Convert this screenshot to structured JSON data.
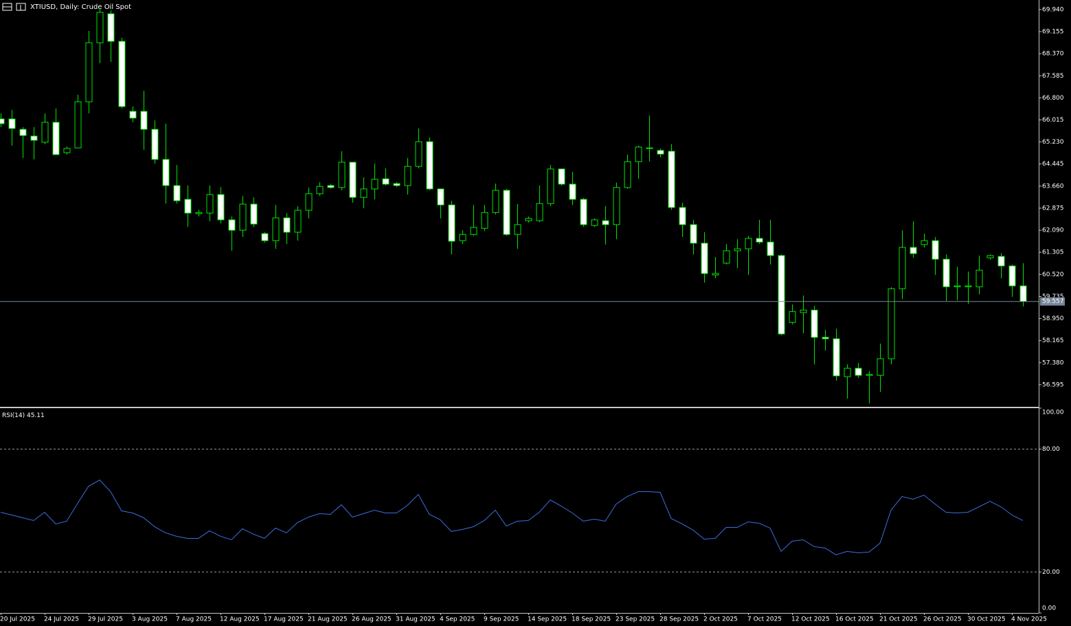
{
  "chart_data": [
    {
      "type": "candlestick",
      "title": "XTIUSD, Daily:  Crude Oil Spot",
      "categories": [
        "20 Jul 2025",
        null,
        null,
        null,
        "24 Jul 2025",
        null,
        null,
        null,
        "29 Jul 2025",
        null,
        null,
        null,
        "3 Aug 2025",
        null,
        null,
        null,
        "7 Aug 2025",
        null,
        null,
        null,
        "12 Aug 2025",
        null,
        null,
        null,
        "17 Aug 2025",
        null,
        null,
        null,
        "21 Aug 2025",
        null,
        null,
        null,
        "26 Aug 2025",
        null,
        null,
        null,
        "31 Aug 2025",
        null,
        null,
        null,
        "4 Sep 2025",
        null,
        null,
        null,
        "9 Sep 2025",
        null,
        null,
        null,
        "14 Sep 2025",
        null,
        null,
        null,
        "18 Sep 2025",
        null,
        null,
        null,
        "23 Sep 2025",
        null,
        null,
        null,
        "28 Sep 2025",
        null,
        null,
        null,
        "2 Oct 2025",
        null,
        null,
        null,
        "7 Oct 2025",
        null,
        null,
        null,
        "12 Oct 2025",
        null,
        null,
        null,
        "16 Oct 2025",
        null,
        null,
        null,
        "21 Oct 2025",
        null,
        null,
        null,
        "26 Oct 2025",
        null,
        null,
        null,
        "30 Oct 2025",
        null,
        null,
        null,
        "4 Nov 2025",
        null
      ],
      "open": [
        66.05,
        66.05,
        65.68,
        65.44,
        65.22,
        65.93,
        64.85,
        65.02,
        66.66,
        68.76,
        69.79,
        68.81,
        66.32,
        66.32,
        65.68,
        64.61,
        63.68,
        63.19,
        62.68,
        62.7,
        63.36,
        62.46,
        62.09,
        63.02,
        61.97,
        61.72,
        62.53,
        62.02,
        62.8,
        63.39,
        63.68,
        63.61,
        64.51,
        63.26,
        63.56,
        63.92,
        63.75,
        63.68,
        64.36,
        65.24,
        63.56,
        62.99,
        61.72,
        61.94,
        62.16,
        62.72,
        63.51,
        61.94,
        62.43,
        62.43,
        63.04,
        64.27,
        63.73,
        63.19,
        62.26,
        62.43,
        62.29,
        63.61,
        64.53,
        65.0,
        64.93,
        64.9,
        62.9,
        62.29,
        61.63,
        60.5,
        60.92,
        61.36,
        61.43,
        61.8,
        61.67,
        61.19,
        58.81,
        59.16,
        59.25,
        58.28,
        58.23,
        56.88,
        57.18,
        56.93,
        56.93,
        57.52,
        60.01,
        61.48,
        61.58,
        61.72,
        61.06,
        60.08,
        60.08,
        60.08,
        61.11,
        61.16,
        60.82,
        60.11
      ],
      "high": [
        66.25,
        66.37,
        65.76,
        65.76,
        66.25,
        66.42,
        65.07,
        66.91,
        69.18,
        69.99,
        69.91,
        68.94,
        66.49,
        67.05,
        66.0,
        65.88,
        64.41,
        63.68,
        62.82,
        63.68,
        63.63,
        62.58,
        63.31,
        63.26,
        62.02,
        62.99,
        62.7,
        62.95,
        63.61,
        63.8,
        63.73,
        64.9,
        64.51,
        63.97,
        64.46,
        64.29,
        63.8,
        64.66,
        65.71,
        65.39,
        63.56,
        63.14,
        62.09,
        62.99,
        62.99,
        63.75,
        63.56,
        63.02,
        62.58,
        63.68,
        64.41,
        64.29,
        64.17,
        63.24,
        62.51,
        62.95,
        63.78,
        64.78,
        65.1,
        66.17,
        65.0,
        65.15,
        63.07,
        62.46,
        62.02,
        61.14,
        61.6,
        61.77,
        61.89,
        62.46,
        62.46,
        61.23,
        59.45,
        59.77,
        59.4,
        58.54,
        58.59,
        57.32,
        57.37,
        57.08,
        58.06,
        60.06,
        62.09,
        62.41,
        61.97,
        61.85,
        61.23,
        60.79,
        60.62,
        61.19,
        61.23,
        61.28,
        60.87,
        60.92
      ],
      "low": [
        65.76,
        65.1,
        64.66,
        64.61,
        65.15,
        64.78,
        64.78,
        65.02,
        66.25,
        68.03,
        68.08,
        66.42,
        65.93,
        64.95,
        64.46,
        63.04,
        63.04,
        62.21,
        62.58,
        62.41,
        62.33,
        61.36,
        61.85,
        62.21,
        61.65,
        61.43,
        61.6,
        61.72,
        62.51,
        63.31,
        63.56,
        63.51,
        63.07,
        62.87,
        63.19,
        63.68,
        63.63,
        63.36,
        64.29,
        63.51,
        62.51,
        61.23,
        61.6,
        61.89,
        62.06,
        62.65,
        61.89,
        61.43,
        62.36,
        62.38,
        62.95,
        63.68,
        62.99,
        62.21,
        62.21,
        61.58,
        61.77,
        63.56,
        63.92,
        64.53,
        64.68,
        62.82,
        61.85,
        61.23,
        60.23,
        60.38,
        60.87,
        60.74,
        60.5,
        61.6,
        60.87,
        58.35,
        58.74,
        58.42,
        57.32,
        57.81,
        56.74,
        56.1,
        56.83,
        55.93,
        56.34,
        57.32,
        59.64,
        61.11,
        61.48,
        60.5,
        59.57,
        59.6,
        59.47,
        59.81,
        61.04,
        60.38,
        59.72,
        59.38
      ],
      "close": [
        65.88,
        65.71,
        65.46,
        65.29,
        65.93,
        64.78,
        65.0,
        66.66,
        68.76,
        69.84,
        68.81,
        66.49,
        66.08,
        65.68,
        64.61,
        63.68,
        63.14,
        62.7,
        62.72,
        63.36,
        62.46,
        62.09,
        63.02,
        62.31,
        61.72,
        62.53,
        62.02,
        62.8,
        63.39,
        63.65,
        63.61,
        64.51,
        63.26,
        63.56,
        63.9,
        63.73,
        63.68,
        64.36,
        65.24,
        63.56,
        62.99,
        61.7,
        61.94,
        62.19,
        62.72,
        63.51,
        61.94,
        62.29,
        62.51,
        63.04,
        64.27,
        63.73,
        63.19,
        62.29,
        62.46,
        62.29,
        63.61,
        64.53,
        65.05,
        65.02,
        64.8,
        62.9,
        62.29,
        61.63,
        60.55,
        60.55,
        61.36,
        61.43,
        61.8,
        61.67,
        61.19,
        58.4,
        59.2,
        59.25,
        58.28,
        58.23,
        56.91,
        57.18,
        56.93,
        56.96,
        57.52,
        60.01,
        61.48,
        61.26,
        61.72,
        61.06,
        60.08,
        60.11,
        60.11,
        60.67,
        61.19,
        60.82,
        60.11,
        59.557
      ],
      "current_price": 59.557,
      "ylim": [
        55.81,
        70.28
      ],
      "yticks": [
        {
          "value": 69.94,
          "label": "69.940"
        },
        69.155,
        {
          "value": 68.37,
          "label": "68.370"
        },
        67.585,
        {
          "value": 66.8,
          "label": "66.800"
        },
        66.015,
        {
          "value": 65.23,
          "label": "65.230"
        },
        64.445,
        {
          "value": 63.66,
          "label": "63.660"
        },
        62.875,
        {
          "value": 62.09,
          "label": "62.090"
        },
        61.305,
        {
          "value": 60.52,
          "label": "60.520"
        },
        59.735,
        {
          "value": 58.95,
          "label": "58.950"
        },
        58.165,
        {
          "value": 57.38,
          "label": "57.380"
        },
        56.595
      ],
      "grid": false,
      "colors": {
        "wick": "#00e600",
        "up_body": "#000000",
        "down_body": "#ffffff",
        "current_line": "#778899"
      }
    },
    {
      "type": "line",
      "title": "RSI(14)",
      "last_value": 45.11,
      "color": "#3d6fe0",
      "values": [
        49.16,
        47.82,
        46.48,
        45.14,
        49.16,
        43.46,
        44.8,
        53.52,
        61.9,
        64.92,
        59.22,
        49.83,
        48.83,
        46.48,
        42.12,
        39.11,
        37.43,
        36.42,
        36.42,
        40.11,
        37.43,
        35.75,
        41.12,
        38.44,
        36.42,
        41.45,
        39.11,
        44.13,
        46.82,
        48.49,
        48.16,
        52.85,
        46.82,
        48.49,
        50.17,
        48.83,
        48.83,
        52.51,
        57.88,
        48.16,
        45.47,
        39.78,
        40.78,
        42.12,
        45.14,
        50.17,
        42.46,
        44.8,
        45.14,
        49.16,
        55.2,
        52.18,
        48.83,
        44.8,
        45.81,
        44.8,
        53.18,
        56.87,
        59.22,
        59.22,
        58.88,
        46.14,
        43.46,
        40.45,
        36.09,
        36.42,
        41.79,
        41.79,
        44.47,
        43.8,
        41.45,
        30.06,
        35.08,
        35.75,
        32.4,
        31.73,
        28.38,
        30.06,
        29.38,
        29.72,
        34.08,
        50.17,
        56.87,
        55.53,
        57.54,
        53.18,
        49.16,
        48.83,
        49.16,
        51.84,
        54.52,
        51.84,
        47.82,
        45.11
      ],
      "ylim": [
        0,
        100
      ],
      "yticks": [
        {
          "value": 100,
          "label": "100.00"
        },
        {
          "value": 80,
          "label": "80.00"
        },
        {
          "value": 20,
          "label": "20.00"
        },
        {
          "value": 0,
          "label": "0.00"
        }
      ],
      "grid": true
    }
  ]
}
